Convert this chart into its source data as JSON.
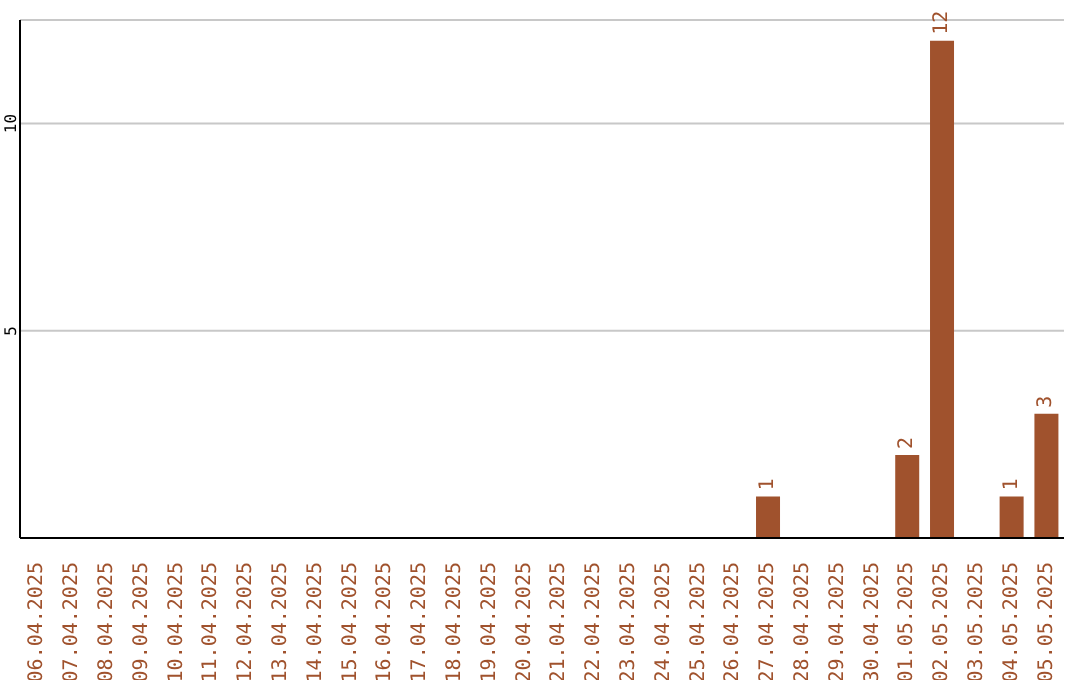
{
  "chart_data": {
    "type": "bar",
    "categories": [
      "06.04.2025",
      "07.04.2025",
      "08.04.2025",
      "09.04.2025",
      "10.04.2025",
      "11.04.2025",
      "12.04.2025",
      "13.04.2025",
      "14.04.2025",
      "15.04.2025",
      "16.04.2025",
      "17.04.2025",
      "18.04.2025",
      "19.04.2025",
      "20.04.2025",
      "21.04.2025",
      "22.04.2025",
      "23.04.2025",
      "24.04.2025",
      "25.04.2025",
      "26.04.2025",
      "27.04.2025",
      "28.04.2025",
      "29.04.2025",
      "30.04.2025",
      "01.05.2025",
      "02.05.2025",
      "03.05.2025",
      "04.05.2025",
      "05.05.2025"
    ],
    "values": [
      0,
      0,
      0,
      0,
      0,
      0,
      0,
      0,
      0,
      0,
      0,
      0,
      0,
      0,
      0,
      0,
      0,
      0,
      0,
      0,
      0,
      1,
      0,
      0,
      0,
      2,
      12,
      0,
      1,
      3
    ],
    "value_labels": [
      null,
      null,
      null,
      null,
      null,
      null,
      null,
      null,
      null,
      null,
      null,
      null,
      null,
      null,
      null,
      null,
      null,
      null,
      null,
      null,
      null,
      "1",
      null,
      null,
      null,
      "2",
      "12",
      null,
      "1",
      "3"
    ],
    "color": "#a0522d",
    "ylim": [
      0,
      12.5
    ],
    "yticks": [
      5,
      10
    ],
    "grid": "y"
  }
}
